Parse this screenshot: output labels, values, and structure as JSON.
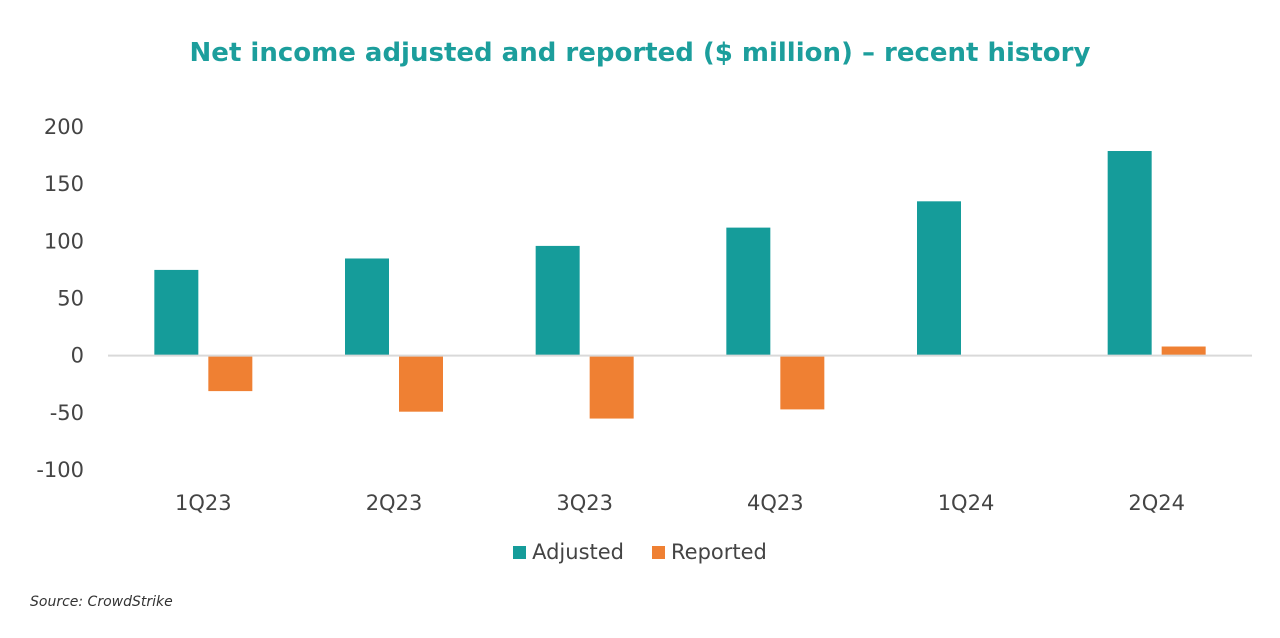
{
  "chart_data": {
    "type": "bar",
    "title": "Net income adjusted and reported ($ million) – recent history",
    "categories": [
      "1Q23",
      "2Q23",
      "3Q23",
      "4Q23",
      "1Q24",
      "2Q24"
    ],
    "series": [
      {
        "name": "Adjusted",
        "values": [
          75,
          85,
          96,
          112,
          135,
          179
        ],
        "color": "#159c9a"
      },
      {
        "name": "Reported",
        "values": [
          -31,
          -49,
          -55,
          -47,
          0,
          8
        ],
        "color": "#ef8033"
      }
    ],
    "ylim": [
      -100,
      200
    ],
    "yticks": [
      -100,
      -50,
      0,
      50,
      100,
      150,
      200
    ],
    "ytick_labels": [
      "-100",
      "-50",
      "0",
      "50",
      "100",
      "150",
      "200"
    ],
    "legend_position": "bottom",
    "grid": false
  },
  "source": "Source: CrowdStrike"
}
